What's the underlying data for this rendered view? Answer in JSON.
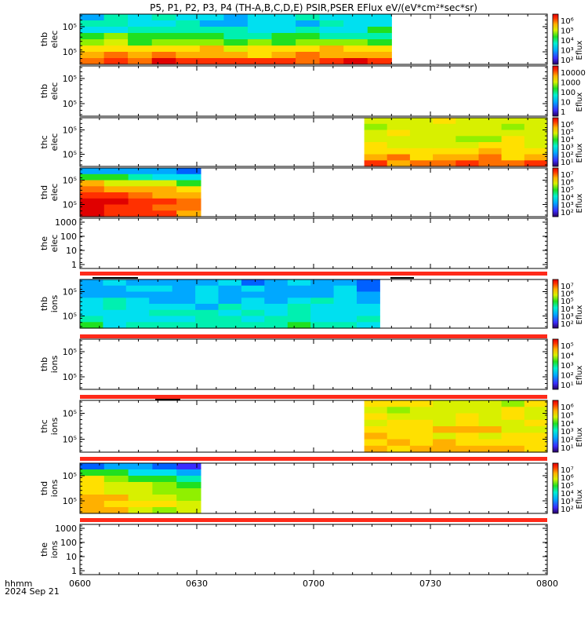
{
  "title": "P5, P1, P2, P3, P4 (TH-A,B,C,D,E) PSIR,PSER EFlux eV/(eV*cm²*sec*sr)",
  "time_axis": {
    "label_line1": "hhmm",
    "label_line2": "2024 Sep 21",
    "ticks": [
      "0600",
      "0630",
      "0700",
      "0730",
      "0800"
    ],
    "range_minutes": [
      0,
      120
    ]
  },
  "colorbar_label": "Eflux",
  "colors": {
    "flag_bar": "#ff2a1a",
    "frame": "#000000"
  },
  "chart_data": [
    {
      "type": "heatmap",
      "ylabel": "thb\nelec",
      "yticks": [
        "10⁵",
        "10⁵"
      ],
      "data_coverage_minutes": [
        0,
        80
      ],
      "colorbar_ticks": [
        "10⁶",
        "10⁵",
        "10⁴",
        "10³",
        "10²"
      ]
    },
    {
      "type": "heatmap",
      "ylabel": "thb\nelec",
      "yticks": [
        "10⁵",
        "10⁵"
      ],
      "data_coverage_minutes": null,
      "colorbar_ticks": [
        "10000",
        "1000",
        "100",
        "10",
        "1"
      ]
    },
    {
      "type": "heatmap",
      "ylabel": "thc\nelec",
      "yticks": [
        "10⁵",
        "10⁵"
      ],
      "data_coverage_minutes": [
        73,
        120
      ],
      "colorbar_ticks": [
        "10⁶",
        "10⁵",
        "10⁴",
        "10³",
        "10²",
        "10¹"
      ]
    },
    {
      "type": "heatmap",
      "ylabel": "thd\nelec",
      "yticks": [
        "10⁵",
        "10⁵"
      ],
      "data_coverage_minutes": [
        0,
        31
      ],
      "colorbar_ticks": [
        "10⁷",
        "10⁶",
        "10⁵",
        "10⁴",
        "10³",
        "10²"
      ]
    },
    {
      "type": "heatmap",
      "ylabel": "the\nelec",
      "yticks": [
        "1000",
        "100",
        "10",
        "1"
      ],
      "data_coverage_minutes": null,
      "colorbar_ticks": []
    },
    {
      "type": "heatmap",
      "ylabel": "thb\nions",
      "yticks": [
        "10⁵",
        "10⁵"
      ],
      "data_coverage_minutes": [
        0,
        77
      ],
      "colorbar_ticks": [
        "10⁷",
        "10⁶",
        "10⁵",
        "10⁴",
        "10³",
        "10²"
      ]
    },
    {
      "type": "heatmap",
      "ylabel": "thb\nions",
      "yticks": [
        "10⁵",
        "10⁵"
      ],
      "data_coverage_minutes": null,
      "colorbar_ticks": [
        "10⁵",
        "10⁴",
        "10³",
        "10²",
        "10¹"
      ]
    },
    {
      "type": "heatmap",
      "ylabel": "thc\nions",
      "yticks": [
        "10⁵",
        "10⁵"
      ],
      "data_coverage_minutes": [
        73,
        120
      ],
      "colorbar_ticks": [
        "10⁶",
        "10⁵",
        "10⁴",
        "10³",
        "10²",
        "10¹"
      ]
    },
    {
      "type": "heatmap",
      "ylabel": "thd\nions",
      "yticks": [
        "10⁵",
        "10⁵"
      ],
      "data_coverage_minutes": [
        0,
        31
      ],
      "colorbar_ticks": [
        "10⁷",
        "10⁶",
        "10⁵",
        "10⁴",
        "10³",
        "10²"
      ]
    },
    {
      "type": "heatmap",
      "ylabel": "the\nions",
      "yticks": [
        "1000",
        "100",
        "10",
        "1"
      ],
      "data_coverage_minutes": null,
      "colorbar_ticks": []
    }
  ]
}
